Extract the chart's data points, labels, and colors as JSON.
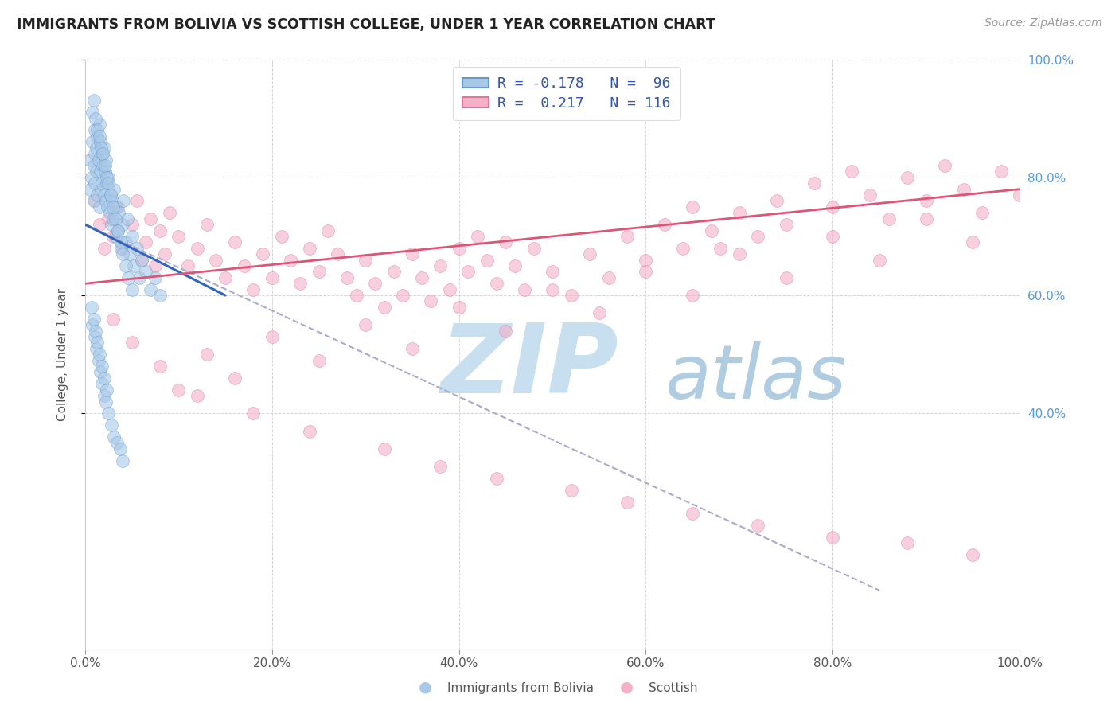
{
  "title": "IMMIGRANTS FROM BOLIVIA VS SCOTTISH COLLEGE, UNDER 1 YEAR CORRELATION CHART",
  "source": "Source: ZipAtlas.com",
  "ylabel": "College, Under 1 year",
  "xlim": [
    0.0,
    1.0
  ],
  "ylim": [
    0.0,
    1.0
  ],
  "xtick_labels": [
    "0.0%",
    "20.0%",
    "40.0%",
    "60.0%",
    "80.0%",
    "100.0%"
  ],
  "xtick_vals": [
    0.0,
    0.2,
    0.4,
    0.6,
    0.8,
    1.0
  ],
  "ytick_labels": [
    "40.0%",
    "60.0%",
    "80.0%",
    "100.0%"
  ],
  "ytick_vals": [
    0.4,
    0.6,
    0.8,
    1.0
  ],
  "blue_r": -0.178,
  "blue_n": 96,
  "pink_r": 0.217,
  "pink_n": 116,
  "blue_color": "#a8c8e8",
  "pink_color": "#f4b0c8",
  "blue_edge_color": "#6699cc",
  "pink_edge_color": "#dd7799",
  "blue_line_color": "#3366bb",
  "pink_line_color": "#dd5577",
  "dash_line_color": "#aaaacc",
  "blue_line_x": [
    0.0,
    0.15
  ],
  "blue_line_y": [
    0.72,
    0.6
  ],
  "pink_line_x": [
    0.0,
    1.0
  ],
  "pink_line_y": [
    0.62,
    0.78
  ],
  "dash_line_x": [
    0.0,
    0.85
  ],
  "dash_line_y": [
    0.72,
    0.1
  ],
  "blue_scatter_x": [
    0.005,
    0.005,
    0.007,
    0.008,
    0.008,
    0.009,
    0.009,
    0.01,
    0.01,
    0.01,
    0.012,
    0.012,
    0.013,
    0.013,
    0.014,
    0.015,
    0.015,
    0.016,
    0.016,
    0.017,
    0.018,
    0.018,
    0.019,
    0.02,
    0.02,
    0.021,
    0.022,
    0.022,
    0.023,
    0.024,
    0.025,
    0.026,
    0.027,
    0.028,
    0.029,
    0.03,
    0.031,
    0.032,
    0.033,
    0.035,
    0.036,
    0.038,
    0.04,
    0.041,
    0.043,
    0.045,
    0.048,
    0.05,
    0.052,
    0.055,
    0.058,
    0.06,
    0.065,
    0.07,
    0.075,
    0.08,
    0.009,
    0.011,
    0.013,
    0.015,
    0.017,
    0.019,
    0.021,
    0.023,
    0.025,
    0.027,
    0.03,
    0.032,
    0.035,
    0.038,
    0.04,
    0.043,
    0.046,
    0.05,
    0.008,
    0.01,
    0.012,
    0.014,
    0.016,
    0.018,
    0.02,
    0.022,
    0.025,
    0.028,
    0.031,
    0.034,
    0.037,
    0.04,
    0.007,
    0.009,
    0.011,
    0.013,
    0.015,
    0.018,
    0.02,
    0.023
  ],
  "blue_scatter_y": [
    0.78,
    0.83,
    0.8,
    0.86,
    0.91,
    0.82,
    0.76,
    0.88,
    0.84,
    0.79,
    0.85,
    0.81,
    0.87,
    0.77,
    0.83,
    0.89,
    0.75,
    0.81,
    0.86,
    0.78,
    0.84,
    0.79,
    0.82,
    0.77,
    0.85,
    0.81,
    0.76,
    0.83,
    0.79,
    0.75,
    0.8,
    0.74,
    0.77,
    0.72,
    0.76,
    0.73,
    0.78,
    0.7,
    0.75,
    0.71,
    0.74,
    0.68,
    0.72,
    0.76,
    0.69,
    0.73,
    0.67,
    0.7,
    0.65,
    0.68,
    0.63,
    0.66,
    0.64,
    0.61,
    0.63,
    0.6,
    0.93,
    0.9,
    0.88,
    0.87,
    0.85,
    0.84,
    0.82,
    0.8,
    0.79,
    0.77,
    0.75,
    0.73,
    0.71,
    0.69,
    0.67,
    0.65,
    0.63,
    0.61,
    0.55,
    0.53,
    0.51,
    0.49,
    0.47,
    0.45,
    0.43,
    0.42,
    0.4,
    0.38,
    0.36,
    0.35,
    0.34,
    0.32,
    0.58,
    0.56,
    0.54,
    0.52,
    0.5,
    0.48,
    0.46,
    0.44
  ],
  "pink_scatter_x": [
    0.01,
    0.015,
    0.02,
    0.025,
    0.03,
    0.035,
    0.04,
    0.05,
    0.055,
    0.06,
    0.065,
    0.07,
    0.075,
    0.08,
    0.085,
    0.09,
    0.1,
    0.11,
    0.12,
    0.13,
    0.14,
    0.15,
    0.16,
    0.17,
    0.18,
    0.19,
    0.2,
    0.21,
    0.22,
    0.23,
    0.24,
    0.25,
    0.26,
    0.27,
    0.28,
    0.29,
    0.3,
    0.31,
    0.32,
    0.33,
    0.34,
    0.35,
    0.36,
    0.37,
    0.38,
    0.39,
    0.4,
    0.41,
    0.42,
    0.43,
    0.44,
    0.45,
    0.46,
    0.47,
    0.48,
    0.5,
    0.52,
    0.54,
    0.56,
    0.58,
    0.6,
    0.62,
    0.64,
    0.65,
    0.67,
    0.68,
    0.7,
    0.72,
    0.74,
    0.75,
    0.78,
    0.8,
    0.82,
    0.84,
    0.86,
    0.88,
    0.9,
    0.92,
    0.94,
    0.96,
    0.98,
    1.0,
    0.03,
    0.05,
    0.08,
    0.1,
    0.13,
    0.16,
    0.2,
    0.25,
    0.3,
    0.35,
    0.4,
    0.45,
    0.5,
    0.55,
    0.6,
    0.65,
    0.7,
    0.75,
    0.8,
    0.85,
    0.9,
    0.95,
    0.12,
    0.18,
    0.24,
    0.32,
    0.38,
    0.44,
    0.52,
    0.58,
    0.65,
    0.72,
    0.8,
    0.88,
    0.95
  ],
  "pink_scatter_y": [
    0.76,
    0.72,
    0.68,
    0.73,
    0.7,
    0.75,
    0.68,
    0.72,
    0.76,
    0.66,
    0.69,
    0.73,
    0.65,
    0.71,
    0.67,
    0.74,
    0.7,
    0.65,
    0.68,
    0.72,
    0.66,
    0.63,
    0.69,
    0.65,
    0.61,
    0.67,
    0.63,
    0.7,
    0.66,
    0.62,
    0.68,
    0.64,
    0.71,
    0.67,
    0.63,
    0.6,
    0.66,
    0.62,
    0.58,
    0.64,
    0.6,
    0.67,
    0.63,
    0.59,
    0.65,
    0.61,
    0.68,
    0.64,
    0.7,
    0.66,
    0.62,
    0.69,
    0.65,
    0.61,
    0.68,
    0.64,
    0.6,
    0.67,
    0.63,
    0.7,
    0.66,
    0.72,
    0.68,
    0.75,
    0.71,
    0.68,
    0.74,
    0.7,
    0.76,
    0.72,
    0.79,
    0.75,
    0.81,
    0.77,
    0.73,
    0.8,
    0.76,
    0.82,
    0.78,
    0.74,
    0.81,
    0.77,
    0.56,
    0.52,
    0.48,
    0.44,
    0.5,
    0.46,
    0.53,
    0.49,
    0.55,
    0.51,
    0.58,
    0.54,
    0.61,
    0.57,
    0.64,
    0.6,
    0.67,
    0.63,
    0.7,
    0.66,
    0.73,
    0.69,
    0.43,
    0.4,
    0.37,
    0.34,
    0.31,
    0.29,
    0.27,
    0.25,
    0.23,
    0.21,
    0.19,
    0.18,
    0.16
  ],
  "watermark_zip": "ZIP",
  "watermark_atlas": "atlas",
  "watermark_color_zip": "#c8dff0",
  "watermark_color_atlas": "#b0cce0",
  "background_color": "#ffffff",
  "grid_color": "#cccccc",
  "legend_label_blue": "R = -0.178   N =  96",
  "legend_label_pink": "R =  0.217   N = 116",
  "legend_text_color": "#3355aa",
  "bottom_label_blue": "Immigrants from Bolivia",
  "bottom_label_pink": "Scottish"
}
